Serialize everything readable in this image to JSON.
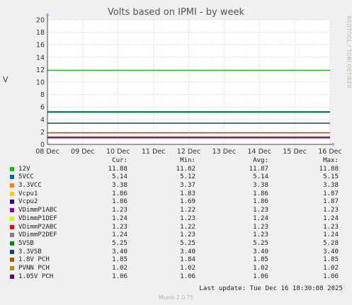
{
  "chart_data": {
    "type": "line",
    "title": "Volts based on IPMI - by week",
    "ylabel": "V",
    "xlabel": "",
    "ylim": [
      0,
      20
    ],
    "ytick_step": 2,
    "x_labels": [
      "08 Dec",
      "09 Dec",
      "10 Dec",
      "11 Dec",
      "12 Dec",
      "13 Dec",
      "14 Dec",
      "15 Dec",
      "16 Dec"
    ],
    "grid": true,
    "legend_columns": [
      "Cur:",
      "Min:",
      "Avg:",
      "Max:"
    ],
    "series": [
      {
        "name": "12V",
        "color": "#00cc00",
        "values": {
          "cur": "11.88",
          "min": "11.82",
          "avg": "11.87",
          "max": "11.88"
        }
      },
      {
        "name": "5VCC",
        "color": "#0066b3",
        "values": {
          "cur": "5.14",
          "min": "5.12",
          "avg": "5.14",
          "max": "5.15"
        }
      },
      {
        "name": "3.3VCC",
        "color": "#ff8000",
        "values": {
          "cur": "3.38",
          "min": "3.37",
          "avg": "3.38",
          "max": "3.38"
        }
      },
      {
        "name": "Vcpu1",
        "color": "#ffcc00",
        "values": {
          "cur": "1.86",
          "min": "1.83",
          "avg": "1.86",
          "max": "1.87"
        }
      },
      {
        "name": "Vcpu2",
        "color": "#330099",
        "values": {
          "cur": "1.86",
          "min": "1.69",
          "avg": "1.86",
          "max": "1.87"
        }
      },
      {
        "name": "VDimmP1ABC",
        "color": "#990099",
        "values": {
          "cur": "1.23",
          "min": "1.22",
          "avg": "1.23",
          "max": "1.23"
        }
      },
      {
        "name": "VDimmP1DEF",
        "color": "#ccff00",
        "values": {
          "cur": "1.24",
          "min": "1.23",
          "avg": "1.24",
          "max": "1.24"
        }
      },
      {
        "name": "VDimmP2ABC",
        "color": "#ff0000",
        "values": {
          "cur": "1.23",
          "min": "1.22",
          "avg": "1.23",
          "max": "1.23"
        }
      },
      {
        "name": "VDimmP2DEF",
        "color": "#808080",
        "values": {
          "cur": "1.24",
          "min": "1.23",
          "avg": "1.23",
          "max": "1.24"
        }
      },
      {
        "name": "5VSB",
        "color": "#008f00",
        "values": {
          "cur": "5.25",
          "min": "5.25",
          "avg": "5.25",
          "max": "5.28"
        }
      },
      {
        "name": "3.3VSB",
        "color": "#00487d",
        "values": {
          "cur": "3.40",
          "min": "3.40",
          "avg": "3.40",
          "max": "3.40"
        }
      },
      {
        "name": "1.8V PCH",
        "color": "#b35a00",
        "values": {
          "cur": "1.85",
          "min": "1.84",
          "avg": "1.85",
          "max": "1.85"
        }
      },
      {
        "name": "PVNN PCH",
        "color": "#b38f00",
        "values": {
          "cur": "1.02",
          "min": "1.02",
          "avg": "1.02",
          "max": "1.02"
        }
      },
      {
        "name": "1.05V PCH",
        "color": "#6b006b",
        "values": {
          "cur": "1.06",
          "min": "1.06",
          "avg": "1.06",
          "max": "1.06"
        }
      }
    ]
  },
  "side_label": "RRDTOOL / TOBI OETIKER",
  "last_update": "Last update: Tue Dec 16 18:30:08 2025",
  "footer": "Munin 2.0.75"
}
